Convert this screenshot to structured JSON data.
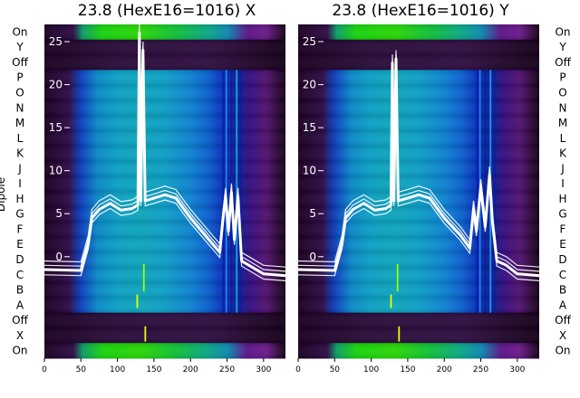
{
  "chart_data": [
    {
      "type": "line",
      "title": "23.8 (HexE16=1016) X",
      "ylabel": "Dipole",
      "x_ticks": [
        0,
        50,
        100,
        150,
        200,
        250,
        300
      ],
      "y_ticks": [
        0,
        5,
        10,
        15,
        20,
        25
      ],
      "xlim": [
        0,
        330
      ],
      "ylim": [
        -11.8,
        27
      ],
      "row_labels": [
        "On",
        "Y",
        "Off",
        "P",
        "O",
        "N",
        "M",
        "L",
        "K",
        "J",
        "I",
        "H",
        "G",
        "F",
        "E",
        "D",
        "C",
        "B",
        "A",
        "Off",
        "X",
        "On"
      ],
      "background": "heatmap (colormap: nipy_spectral)",
      "series": [
        {
          "values": [
            {
              "x": 0,
              "y": -1.5
            },
            {
              "x": 50,
              "y": -1.6
            },
            {
              "x": 60,
              "y": 1.5
            },
            {
              "x": 65,
              "y": 4.5
            },
            {
              "x": 75,
              "y": 5.5
            },
            {
              "x": 90,
              "y": 6.2
            },
            {
              "x": 105,
              "y": 5.4
            },
            {
              "x": 120,
              "y": 5.6
            },
            {
              "x": 128,
              "y": 6.0
            },
            {
              "x": 130,
              "y": 26.0
            },
            {
              "x": 132,
              "y": 6.5
            },
            {
              "x": 135,
              "y": 24.0
            },
            {
              "x": 138,
              "y": 6.5
            },
            {
              "x": 150,
              "y": 6.8
            },
            {
              "x": 165,
              "y": 7.2
            },
            {
              "x": 180,
              "y": 6.8
            },
            {
              "x": 200,
              "y": 4.5
            },
            {
              "x": 220,
              "y": 2.5
            },
            {
              "x": 240,
              "y": 0.5
            },
            {
              "x": 244,
              "y": 4.0
            },
            {
              "x": 248,
              "y": 7.0
            },
            {
              "x": 252,
              "y": 3.0
            },
            {
              "x": 256,
              "y": 7.5
            },
            {
              "x": 260,
              "y": 2.0
            },
            {
              "x": 265,
              "y": 7.0
            },
            {
              "x": 270,
              "y": -0.5
            },
            {
              "x": 280,
              "y": -1.0
            },
            {
              "x": 300,
              "y": -2.0
            },
            {
              "x": 330,
              "y": -2.2
            }
          ]
        }
      ]
    },
    {
      "type": "line",
      "title": "23.8 (HexE16=1016) Y",
      "x_ticks": [
        0,
        50,
        100,
        150,
        200,
        250,
        300
      ],
      "y_ticks": [
        0,
        5,
        10,
        15,
        20,
        25
      ],
      "xlim": [
        0,
        330
      ],
      "ylim": [
        -11.8,
        27
      ],
      "row_labels": [
        "On",
        "Y",
        "Off",
        "P",
        "O",
        "N",
        "M",
        "L",
        "K",
        "J",
        "I",
        "H",
        "G",
        "F",
        "E",
        "D",
        "C",
        "B",
        "A",
        "Off",
        "X",
        "On"
      ],
      "background": "heatmap (colormap: nipy_spectral)",
      "series": [
        {
          "values": [
            {
              "x": 0,
              "y": -1.5
            },
            {
              "x": 50,
              "y": -1.6
            },
            {
              "x": 60,
              "y": 1.5
            },
            {
              "x": 65,
              "y": 4.5
            },
            {
              "x": 75,
              "y": 5.5
            },
            {
              "x": 90,
              "y": 6.2
            },
            {
              "x": 105,
              "y": 5.4
            },
            {
              "x": 120,
              "y": 5.6
            },
            {
              "x": 127,
              "y": 6.0
            },
            {
              "x": 129,
              "y": 22.5
            },
            {
              "x": 131,
              "y": 6.5
            },
            {
              "x": 134,
              "y": 23.0
            },
            {
              "x": 137,
              "y": 6.5
            },
            {
              "x": 150,
              "y": 6.8
            },
            {
              "x": 165,
              "y": 7.2
            },
            {
              "x": 180,
              "y": 6.8
            },
            {
              "x": 200,
              "y": 4.5
            },
            {
              "x": 222,
              "y": 2.5
            },
            {
              "x": 235,
              "y": 1.0
            },
            {
              "x": 240,
              "y": 5.5
            },
            {
              "x": 244,
              "y": 3.0
            },
            {
              "x": 250,
              "y": 8.0
            },
            {
              "x": 256,
              "y": 3.5
            },
            {
              "x": 262,
              "y": 9.5
            },
            {
              "x": 266,
              "y": 4.0
            },
            {
              "x": 272,
              "y": -0.5
            },
            {
              "x": 285,
              "y": -1.0
            },
            {
              "x": 300,
              "y": -2.0
            },
            {
              "x": 330,
              "y": -2.2
            }
          ]
        }
      ]
    }
  ]
}
